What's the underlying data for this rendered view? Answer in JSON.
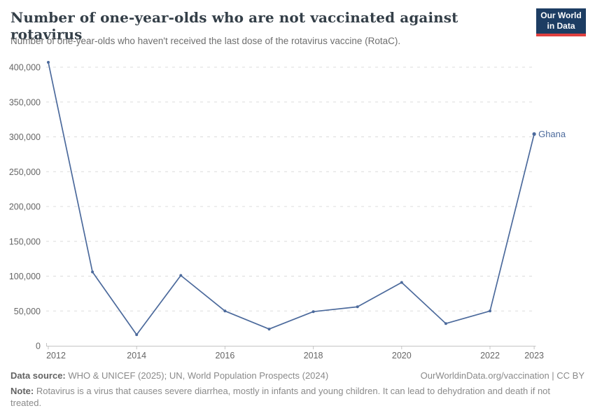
{
  "header": {
    "title": "Number of one-year-olds who are not vaccinated against rotavirus",
    "subtitle": "Number of one-year-olds who haven't received the last dose of the rotavirus vaccine (RotaC)."
  },
  "logo": {
    "line1": "Our World",
    "line2": "in Data"
  },
  "chart_data": {
    "type": "line",
    "title": "Number of one-year-olds who are not vaccinated against rotavirus",
    "subtitle": "Number of one-year-olds who haven't received the last dose of the rotavirus vaccine (RotaC).",
    "x": [
      2012,
      2013,
      2014,
      2015,
      2016,
      2017,
      2018,
      2019,
      2020,
      2021,
      2022,
      2023
    ],
    "series": [
      {
        "name": "Ghana",
        "color": "#4C6A9C",
        "values": [
          407000,
          106000,
          16000,
          101000,
          50000,
          24000,
          49000,
          56000,
          91000,
          32000,
          50000,
          304000
        ]
      }
    ],
    "xlabel": "",
    "ylabel": "",
    "ylim": [
      0,
      400000
    ],
    "yticks": [
      0,
      50000,
      100000,
      150000,
      200000,
      250000,
      300000,
      350000,
      400000
    ],
    "ytick_labels": [
      "0",
      "50,000",
      "100,000",
      "150,000",
      "200,000",
      "250,000",
      "300,000",
      "350,000",
      "400,000"
    ],
    "xticks": [
      2012,
      2014,
      2016,
      2018,
      2020,
      2022,
      2023
    ],
    "xtick_labels": [
      "2012",
      "2014",
      "2016",
      "2018",
      "2020",
      "2022",
      "2023"
    ],
    "grid": "horizontal-dashed",
    "legend_position": "end-of-line-label"
  },
  "colors": {
    "line": "#4C6A9C",
    "grid": "#dcdcdc",
    "axis": "#c4c4c4",
    "tick_text": "#666666",
    "entity_label": "#4C6A9C",
    "logo_bg": "#1d3d63",
    "logo_bar": "#e0403f"
  },
  "footer": {
    "data_source_label": "Data source:",
    "data_source_text": " WHO & UNICEF (2025); UN, World Population Prospects (2024)",
    "link_text": "OurWorldinData.org/vaccination | CC BY",
    "note_label": "Note:",
    "note_text": " Rotavirus is a virus that causes severe diarrhea, mostly in infants and young children. It can lead to dehydration and death if not treated."
  }
}
